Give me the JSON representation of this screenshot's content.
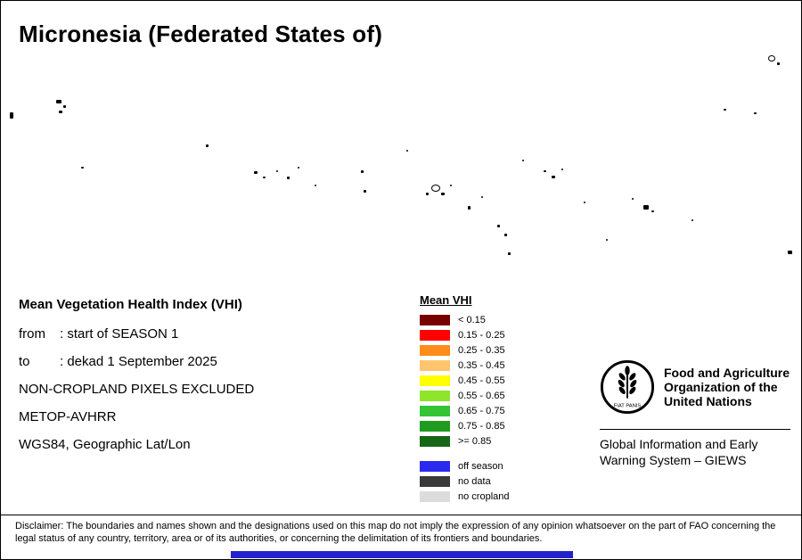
{
  "title": "Micronesia (Federated States of)",
  "info": {
    "heading": "Mean Vegetation Health Index (VHI)",
    "lines": [
      {
        "label": "from",
        "text": ": start of SEASON 1"
      },
      {
        "label": "to",
        "text": ": dekad 1 September 2025"
      },
      {
        "label": "",
        "text": "NON-CROPLAND PIXELS EXCLUDED"
      },
      {
        "label": "",
        "text": "METOP-AVHRR"
      },
      {
        "label": "",
        "text": "WGS84, Geographic Lat/Lon"
      }
    ]
  },
  "legend": {
    "title": "Mean VHI",
    "classes": [
      {
        "label": "< 0.15",
        "color": "#780000"
      },
      {
        "label": "0.15 - 0.25",
        "color": "#FF0000"
      },
      {
        "label": "0.25 - 0.35",
        "color": "#FF8C1A"
      },
      {
        "label": "0.35 - 0.45",
        "color": "#FFC56E"
      },
      {
        "label": "0.45 - 0.55",
        "color": "#FFFF00"
      },
      {
        "label": "0.55 - 0.65",
        "color": "#8FE52A"
      },
      {
        "label": "0.65 - 0.75",
        "color": "#35C435"
      },
      {
        "label": "0.75 - 0.85",
        "color": "#1F9B1F"
      },
      {
        "label": ">= 0.85",
        "color": "#176617"
      }
    ],
    "extra": [
      {
        "label": "off season",
        "color": "#2A2AEF"
      },
      {
        "label": "no data",
        "color": "#3A3A3A"
      },
      {
        "label": "no cropland",
        "color": "#DCDCDC"
      }
    ]
  },
  "fao": {
    "org_lines": [
      "Food and Agriculture",
      "Organization of the",
      "United Nations"
    ],
    "motto": "FIAT PANIS",
    "giews_lines": [
      "Global Information and Early",
      "Warning System – GIEWS"
    ]
  },
  "disclaimer": "Disclaimer: The boundaries and names shown and the designations used on this map do not imply the expression of any opinion whatsoever on the part of FAO concerning the legal status of any country, territory, area or of its authorities, or concerning the delimitation of its frontiers and boundaries.",
  "colors": {
    "bottom_bar": "#2222CC",
    "island": "#000000"
  },
  "map_islands": [
    [
      10,
      125,
      4,
      7,
      0
    ],
    [
      62,
      111,
      6,
      4,
      0
    ],
    [
      70,
      117,
      3,
      3,
      0
    ],
    [
      65,
      123,
      4,
      3,
      0
    ],
    [
      90,
      186,
      3,
      2,
      0
    ],
    [
      230,
      161,
      3,
      3,
      0
    ],
    [
      284,
      191,
      4,
      3,
      0
    ],
    [
      294,
      197,
      3,
      2,
      0
    ],
    [
      309,
      190,
      2,
      2,
      0
    ],
    [
      321,
      197,
      3,
      3,
      0
    ],
    [
      333,
      186,
      2,
      2,
      0
    ],
    [
      352,
      206,
      2,
      2,
      0
    ],
    [
      404,
      190,
      3,
      3,
      0
    ],
    [
      407,
      212,
      3,
      3,
      0
    ],
    [
      455,
      167,
      2,
      2,
      0
    ],
    [
      483,
      206,
      10,
      8,
      1
    ],
    [
      494,
      215,
      4,
      3,
      0
    ],
    [
      477,
      215,
      3,
      3,
      0
    ],
    [
      504,
      206,
      2,
      2,
      0
    ],
    [
      524,
      230,
      3,
      4,
      0
    ],
    [
      539,
      219,
      2,
      2,
      0
    ],
    [
      557,
      251,
      3,
      3,
      0
    ],
    [
      565,
      261,
      3,
      3,
      0
    ],
    [
      569,
      282,
      3,
      3,
      0
    ],
    [
      585,
      178,
      2,
      2,
      0
    ],
    [
      609,
      190,
      3,
      2,
      0
    ],
    [
      618,
      196,
      4,
      3,
      0
    ],
    [
      629,
      188,
      2,
      2,
      0
    ],
    [
      654,
      225,
      2,
      2,
      0
    ],
    [
      679,
      267,
      2,
      2,
      0
    ],
    [
      708,
      221,
      2,
      2,
      0
    ],
    [
      721,
      229,
      6,
      5,
      0
    ],
    [
      730,
      235,
      3,
      2,
      0
    ],
    [
      775,
      245,
      2,
      2,
      0
    ],
    [
      811,
      121,
      3,
      2,
      0
    ],
    [
      845,
      125,
      3,
      2,
      0
    ],
    [
      861,
      61,
      8,
      7,
      1
    ],
    [
      871,
      69,
      3,
      3,
      0
    ],
    [
      883,
      280,
      5,
      4,
      0
    ]
  ]
}
